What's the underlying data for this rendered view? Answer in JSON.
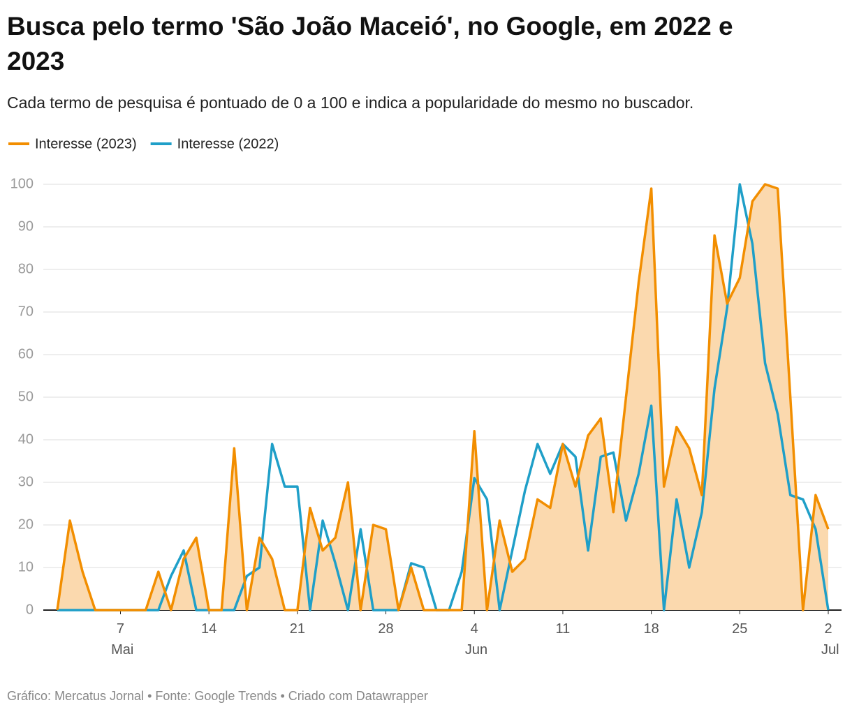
{
  "chart_data": {
    "type": "line",
    "title": [
      "Busca pelo termo 'São João Maceió', no Google, em 2022 e",
      "2023"
    ],
    "subtitle": "Cada termo de pesquisa é pontuado de 0 a 100 e indica a popularidade do mesmo no buscador.",
    "footer": "Gráfico: Mercatus Jornal • Fonte: Google Trends • Criado com Datawrapper",
    "categories": [
      null,
      null,
      null,
      null,
      null,
      "7 Mai",
      null,
      null,
      null,
      null,
      null,
      null,
      "14",
      null,
      null,
      null,
      null,
      null,
      null,
      "21",
      null,
      null,
      null,
      null,
      null,
      null,
      "28",
      null,
      null,
      null,
      null,
      null,
      null,
      "4 Jun",
      null,
      null,
      null,
      null,
      null,
      null,
      "11",
      null,
      null,
      null,
      null,
      null,
      null,
      "18",
      null,
      null,
      null,
      null,
      null,
      null,
      "25",
      null,
      null,
      null,
      null,
      null,
      null,
      "2 Jul"
    ],
    "series": [
      {
        "name": "Interesse (2023)",
        "color": "#f28e00",
        "area_color": "#fbd9ae",
        "values": [
          0,
          21,
          9,
          0,
          0,
          0,
          0,
          0,
          9,
          0,
          12,
          17,
          0,
          0,
          38,
          0,
          17,
          12,
          0,
          0,
          24,
          14,
          17,
          30,
          0,
          20,
          19,
          0,
          10,
          0,
          0,
          0,
          0,
          42,
          0,
          21,
          9,
          12,
          26,
          24,
          39,
          29,
          41,
          45,
          23,
          50,
          77,
          99,
          29,
          43,
          38,
          27,
          88,
          72,
          78,
          96,
          100,
          99,
          50,
          0,
          27,
          19
        ]
      },
      {
        "name": "Interesse (2022)",
        "color": "#1f9fc8",
        "values": [
          0,
          0,
          0,
          0,
          0,
          0,
          0,
          0,
          0,
          8,
          14,
          0,
          0,
          0,
          0,
          8,
          10,
          39,
          29,
          29,
          0,
          21,
          11,
          0,
          19,
          0,
          0,
          0,
          11,
          10,
          0,
          0,
          9,
          31,
          26,
          0,
          14,
          28,
          39,
          32,
          39,
          36,
          14,
          36,
          37,
          21,
          32,
          48,
          0,
          26,
          10,
          23,
          52,
          71,
          100,
          86,
          58,
          46,
          27,
          26,
          19,
          0
        ]
      }
    ],
    "ylim": [
      0,
      100
    ],
    "yticks": [
      0,
      10,
      20,
      30,
      40,
      50,
      60,
      70,
      80,
      90,
      100
    ],
    "grid": true
  }
}
